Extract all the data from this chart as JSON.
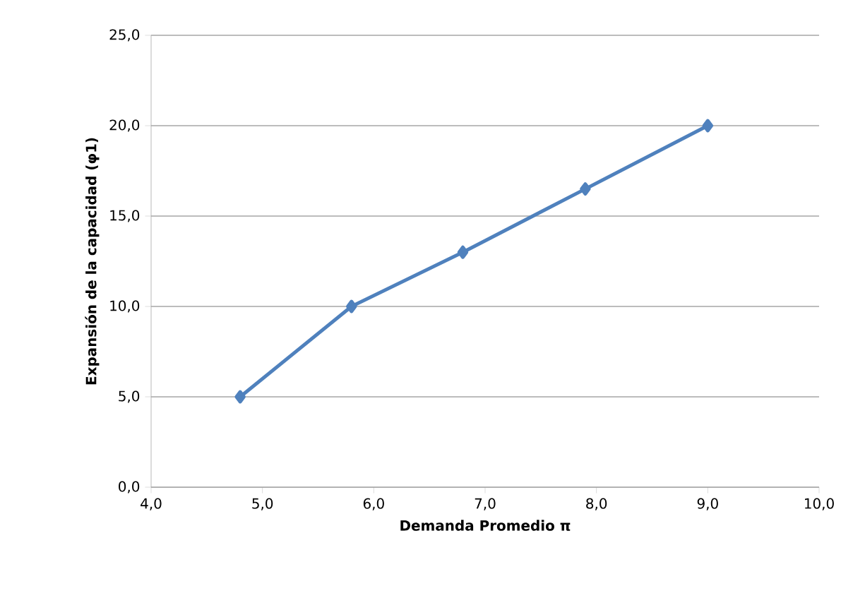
{
  "chart_data": {
    "type": "line",
    "xlabel": "Demanda Promedio π",
    "ylabel": "Expansión de la capacidad (φ1)",
    "x": [
      4.8,
      5.8,
      6.8,
      7.9,
      9.0
    ],
    "series": [
      {
        "color": "#4f81bd",
        "values": [
          5,
          10,
          13,
          16.5,
          20
        ]
      }
    ],
    "xlim": [
      4,
      10
    ],
    "ylim": [
      0,
      25
    ],
    "xticks": [
      {
        "value": 4,
        "label": "4,0"
      },
      {
        "value": 5,
        "label": "5,0"
      },
      {
        "value": 6,
        "label": "6,0"
      },
      {
        "value": 7,
        "label": "7,0"
      },
      {
        "value": 8,
        "label": "8,0"
      },
      {
        "value": 9,
        "label": "9,0"
      },
      {
        "value": 10,
        "label": "10,0"
      }
    ],
    "yticks": [
      {
        "value": 0,
        "label": "0,0"
      },
      {
        "value": 5,
        "label": "5,0"
      },
      {
        "value": 10,
        "label": "10,0"
      },
      {
        "value": 15,
        "label": "15,0"
      },
      {
        "value": 20,
        "label": "20,0"
      },
      {
        "value": 25,
        "label": "25,0"
      }
    ],
    "grid": "y",
    "marker": "diamond",
    "line_style": "solid"
  }
}
